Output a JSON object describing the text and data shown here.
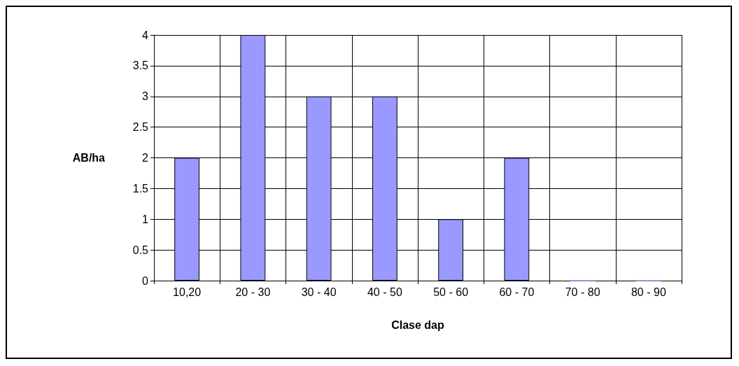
{
  "chart_data": {
    "type": "bar",
    "xlabel": "Clase dap",
    "ylabel": "AB/ha",
    "categories": [
      "10,20",
      "20 - 30",
      "30 - 40",
      "40 - 50",
      "50 - 60",
      "60 - 70",
      "70 - 80",
      "80 - 90"
    ],
    "values": [
      2,
      4,
      3,
      3,
      1,
      2,
      0,
      0
    ],
    "color": "#9999ff",
    "ylim": [
      0,
      4
    ],
    "yticks": [
      0,
      0.5,
      1,
      1.5,
      2,
      2.5,
      3,
      3.5,
      4
    ],
    "grid": true
  }
}
